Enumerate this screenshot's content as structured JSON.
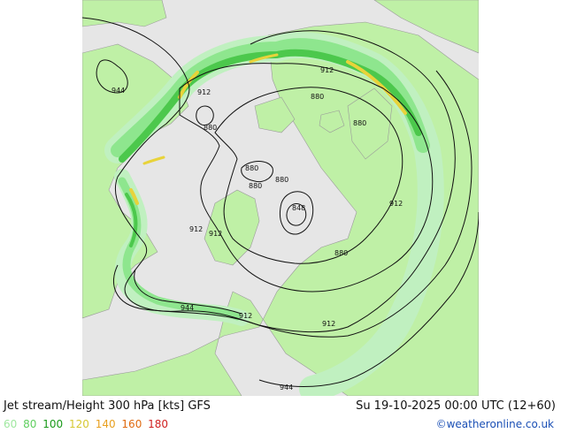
{
  "map": {
    "colors": {
      "ocean": "#e6e6e6",
      "land": "#bff0a6",
      "border": "#9a9a9a",
      "jet_60": "#c0f0c0",
      "jet_80": "#8ee68e",
      "jet_100": "#4cc84c",
      "jet_120": "#e8d33a",
      "contour": "#111111"
    },
    "contour_labels": [
      {
        "text": "944"
      },
      {
        "text": "912"
      },
      {
        "text": "912"
      },
      {
        "text": "880"
      },
      {
        "text": "880"
      },
      {
        "text": "880"
      },
      {
        "text": "880"
      },
      {
        "text": "880"
      },
      {
        "text": "880"
      },
      {
        "text": "848"
      },
      {
        "text": "880"
      },
      {
        "text": "912"
      },
      {
        "text": "912"
      },
      {
        "text": "912"
      },
      {
        "text": "944"
      },
      {
        "text": "912"
      },
      {
        "text": "912"
      },
      {
        "text": "944"
      }
    ]
  },
  "footer": {
    "title": "Jet stream/Height 300 hPa [kts] GFS",
    "datetime": "Su 19-10-2025 00:00 UTC (12+60)",
    "legend": [
      {
        "value": "60",
        "color": "#a0e8a0"
      },
      {
        "value": "80",
        "color": "#5fcf5f"
      },
      {
        "value": "100",
        "color": "#1a9a1a"
      },
      {
        "value": "120",
        "color": "#d6c832"
      },
      {
        "value": "140",
        "color": "#e8a020"
      },
      {
        "value": "160",
        "color": "#e06a10"
      },
      {
        "value": "180",
        "color": "#d02020"
      }
    ],
    "credit": "©weatheronline.co.uk"
  }
}
